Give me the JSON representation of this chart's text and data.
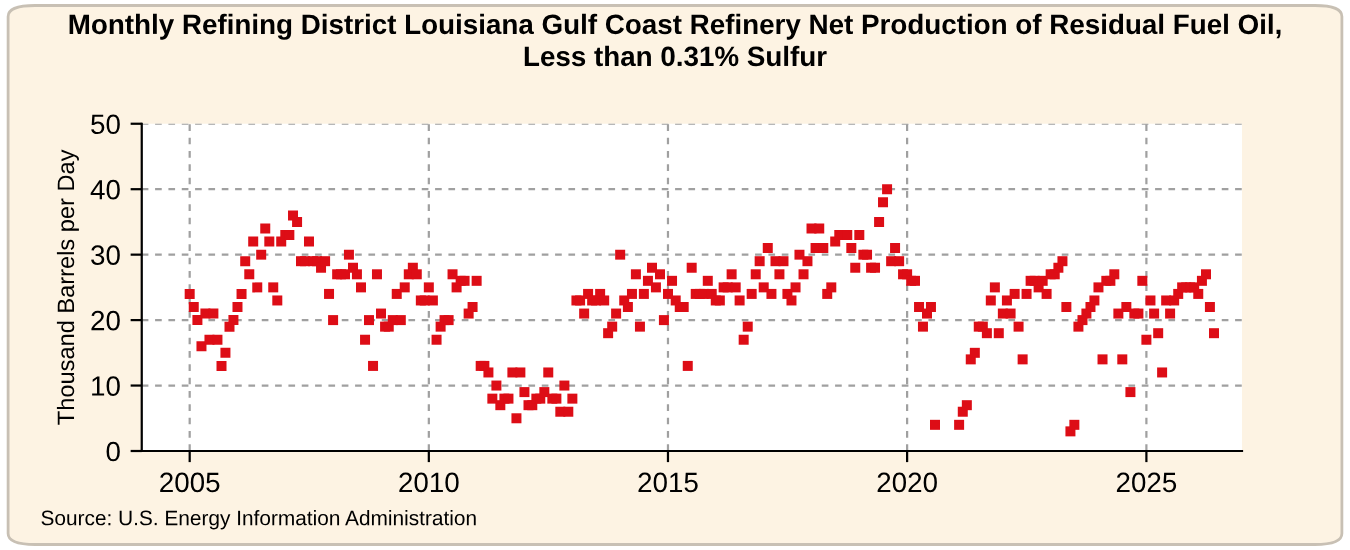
{
  "chart_data": {
    "type": "scatter",
    "title": "Monthly Refining District Louisiana Gulf Coast Refinery Net Production of Residual Fuel Oil,\nLess than 0.31% Sulfur",
    "ylabel": "Thousand Barrels per Day",
    "annotations": [
      "Source: U.S. Energy Information Administration"
    ],
    "x": [
      "2005-01",
      "2005-02",
      "2005-03",
      "2005-04",
      "2005-05",
      "2005-06",
      "2005-07",
      "2005-08",
      "2005-09",
      "2005-10",
      "2005-11",
      "2005-12",
      "2006-01",
      "2006-02",
      "2006-03",
      "2006-04",
      "2006-05",
      "2006-06",
      "2006-07",
      "2006-08",
      "2006-09",
      "2006-10",
      "2006-11",
      "2006-12",
      "2007-01",
      "2007-02",
      "2007-03",
      "2007-04",
      "2007-05",
      "2007-06",
      "2007-07",
      "2007-08",
      "2007-09",
      "2007-10",
      "2007-11",
      "2007-12",
      "2008-01",
      "2008-02",
      "2008-03",
      "2008-04",
      "2008-05",
      "2008-06",
      "2008-07",
      "2008-08",
      "2008-09",
      "2008-10",
      "2008-11",
      "2008-12",
      "2009-01",
      "2009-02",
      "2009-03",
      "2009-04",
      "2009-05",
      "2009-06",
      "2009-07",
      "2009-08",
      "2009-09",
      "2009-10",
      "2009-11",
      "2009-12",
      "2010-01",
      "2010-02",
      "2010-03",
      "2010-04",
      "2010-05",
      "2010-06",
      "2010-07",
      "2010-08",
      "2010-09",
      "2010-10",
      "2010-11",
      "2010-12",
      "2011-01",
      "2011-02",
      "2011-03",
      "2011-04",
      "2011-05",
      "2011-06",
      "2011-07",
      "2011-08",
      "2011-09",
      "2011-10",
      "2011-11",
      "2011-12",
      "2012-01",
      "2012-02",
      "2012-03",
      "2012-04",
      "2012-05",
      "2012-06",
      "2012-07",
      "2012-08",
      "2012-09",
      "2012-10",
      "2012-11",
      "2012-12",
      "2013-01",
      "2013-02",
      "2013-03",
      "2013-04",
      "2013-05",
      "2013-06",
      "2013-07",
      "2013-08",
      "2013-09",
      "2013-10",
      "2013-11",
      "2013-12",
      "2014-01",
      "2014-02",
      "2014-03",
      "2014-04",
      "2014-05",
      "2014-06",
      "2014-07",
      "2014-08",
      "2014-09",
      "2014-10",
      "2014-11",
      "2014-12",
      "2015-01",
      "2015-02",
      "2015-03",
      "2015-04",
      "2015-05",
      "2015-06",
      "2015-07",
      "2015-08",
      "2015-09",
      "2015-10",
      "2015-11",
      "2015-12",
      "2016-01",
      "2016-02",
      "2016-03",
      "2016-04",
      "2016-05",
      "2016-06",
      "2016-07",
      "2016-08",
      "2016-09",
      "2016-10",
      "2016-11",
      "2016-12",
      "2017-01",
      "2017-02",
      "2017-03",
      "2017-04",
      "2017-05",
      "2017-06",
      "2017-07",
      "2017-08",
      "2017-09",
      "2017-10",
      "2017-11",
      "2017-12",
      "2018-01",
      "2018-02",
      "2018-03",
      "2018-04",
      "2018-05",
      "2018-06",
      "2018-07",
      "2018-08",
      "2018-09",
      "2018-10",
      "2018-11",
      "2018-12",
      "2019-01",
      "2019-02",
      "2019-03",
      "2019-04",
      "2019-05",
      "2019-06",
      "2019-07",
      "2019-08",
      "2019-09",
      "2019-10",
      "2019-11",
      "2019-12",
      "2020-01",
      "2020-02",
      "2020-03",
      "2020-04",
      "2020-05",
      "2020-06",
      "2020-07",
      "2020-08",
      "2020-09",
      "2020-10",
      "2020-11",
      "2020-12",
      "2021-01",
      "2021-02",
      "2021-03",
      "2021-04",
      "2021-05",
      "2021-06",
      "2021-07",
      "2021-08",
      "2021-09",
      "2021-10",
      "2021-11",
      "2021-12",
      "2022-01",
      "2022-02",
      "2022-03",
      "2022-04",
      "2022-05",
      "2022-06",
      "2022-07",
      "2022-08",
      "2022-09",
      "2022-10",
      "2022-11",
      "2022-12",
      "2023-01",
      "2023-02",
      "2023-03",
      "2023-04",
      "2023-05",
      "2023-06",
      "2023-07",
      "2023-08",
      "2023-09",
      "2023-10",
      "2023-11",
      "2023-12",
      "2024-01",
      "2024-02",
      "2024-03",
      "2024-04",
      "2024-05",
      "2024-06",
      "2024-07",
      "2024-08",
      "2024-09",
      "2024-10",
      "2024-11",
      "2024-12",
      "2025-01",
      "2025-02",
      "2025-03",
      "2025-04",
      "2025-05",
      "2025-06",
      "2025-07",
      "2025-08",
      "2025-09",
      "2025-10",
      "2025-11",
      "2025-12",
      "2026-01",
      "2026-02",
      "2026-03",
      "2026-04",
      "2026-05",
      "2026-06"
    ],
    "series": [
      {
        "color": "#dd0d16",
        "values": [
          24,
          22,
          20,
          16,
          21,
          17,
          21,
          17,
          13,
          15,
          19,
          20,
          22,
          24,
          29,
          27,
          32,
          25,
          30,
          34,
          32,
          25,
          23,
          32,
          33,
          33,
          36,
          35,
          29,
          29,
          32,
          29,
          29,
          28,
          29,
          24,
          20,
          27,
          27,
          27,
          30,
          28,
          27,
          25,
          17,
          20,
          13,
          27,
          21,
          19,
          19,
          20,
          24,
          20,
          25,
          27,
          28,
          27,
          23,
          23,
          25,
          23,
          17,
          19,
          20,
          20,
          27,
          25,
          26,
          26,
          21,
          22,
          26,
          13,
          13,
          12,
          8,
          10,
          7,
          8,
          8,
          12,
          5,
          12,
          9,
          7,
          7,
          8,
          8,
          9,
          12,
          8,
          8,
          6,
          10,
          6,
          8,
          23,
          23,
          21,
          24,
          23,
          23,
          24,
          23,
          18,
          19,
          21,
          30,
          23,
          22,
          24,
          27,
          19,
          24,
          26,
          28,
          25,
          27,
          20,
          24,
          26,
          23,
          22,
          22,
          13,
          28,
          24,
          24,
          24,
          26,
          24,
          23,
          23,
          25,
          25,
          27,
          25,
          23,
          17,
          19,
          24,
          27,
          29,
          25,
          31,
          24,
          29,
          27,
          29,
          24,
          23,
          25,
          30,
          27,
          29,
          34,
          31,
          34,
          31,
          24,
          25,
          32,
          33,
          null,
          33,
          31,
          28,
          33,
          30,
          30,
          28,
          28,
          35,
          38,
          40,
          29,
          31,
          29,
          27,
          27,
          26,
          26,
          22,
          19,
          21,
          22,
          4,
          null,
          null,
          null,
          null,
          null,
          4,
          6,
          7,
          14,
          15,
          19,
          19,
          18,
          23,
          25,
          18,
          21,
          23,
          21,
          24,
          19,
          14,
          24,
          26,
          26,
          25,
          26,
          24,
          27,
          27,
          28,
          29,
          22,
          3,
          4,
          19,
          20,
          21,
          22,
          23,
          25,
          14,
          26,
          26,
          27,
          21,
          14,
          22,
          9,
          21,
          21,
          26,
          17,
          23,
          21,
          18,
          12,
          23,
          21,
          23,
          24,
          25,
          25,
          25,
          25,
          24,
          26,
          27,
          22,
          18
        ]
      }
    ],
    "xlim": [
      "2004-01",
      "2027-01"
    ],
    "xticks": [
      {
        "value": "2005-01",
        "label": "2005"
      },
      {
        "value": "2010-01",
        "label": "2010"
      },
      {
        "value": "2015-01",
        "label": "2015"
      },
      {
        "value": "2020-01",
        "label": "2020"
      },
      {
        "value": "2025-01",
        "label": "2025"
      }
    ],
    "ylim": [
      0,
      50
    ],
    "yticks": [
      0,
      10,
      20,
      30,
      40,
      50
    ],
    "grid": true,
    "marker": "square"
  }
}
